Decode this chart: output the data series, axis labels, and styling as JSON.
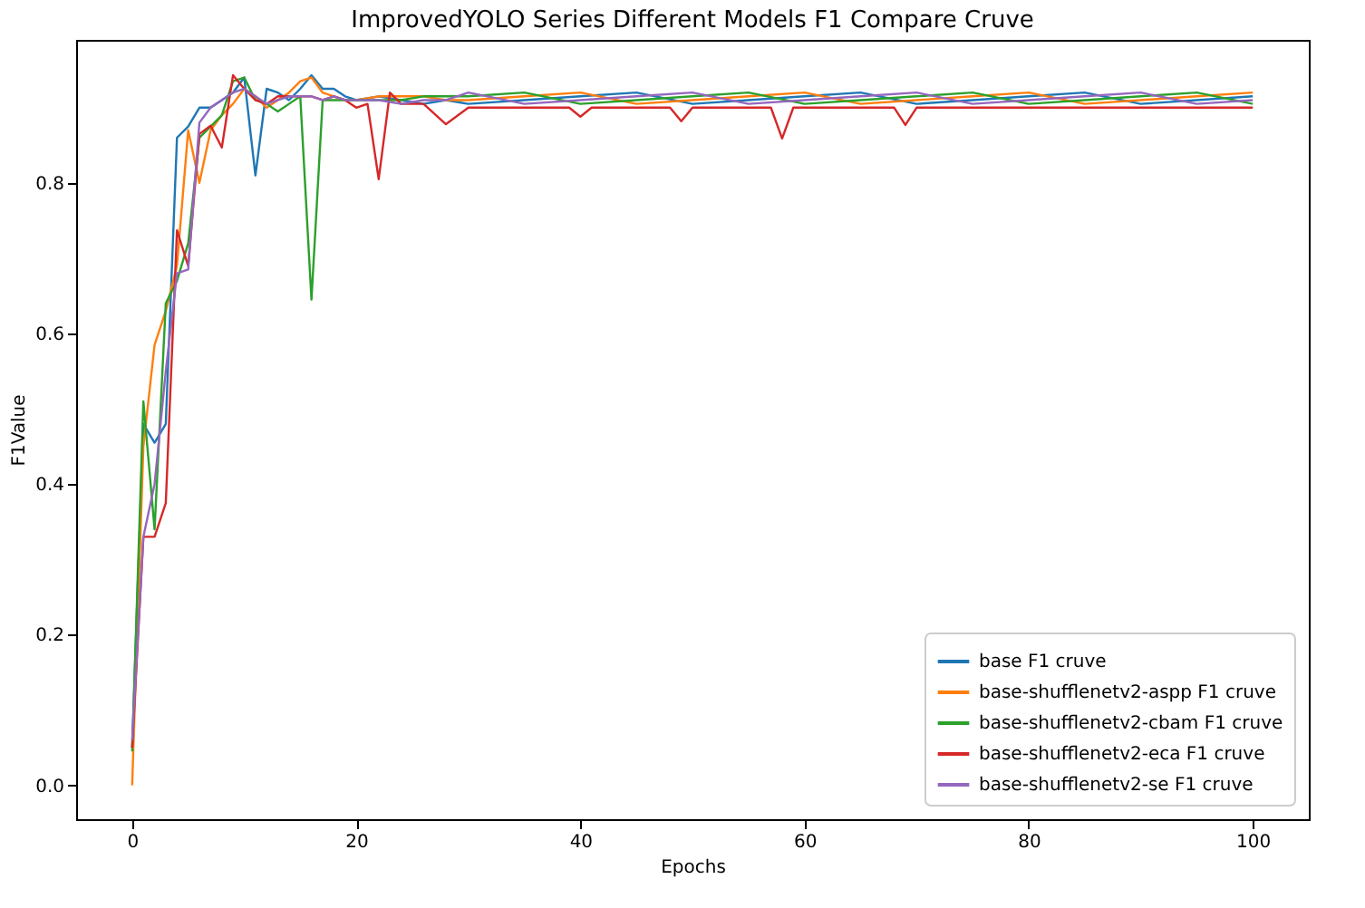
{
  "chart_data": {
    "type": "line",
    "title": "ImprovedYOLO Series Different Models F1 Compare Cruve",
    "xlabel": "Epochs",
    "ylabel": "F1Value",
    "xlim": [
      -5,
      105
    ],
    "xticks": [
      0,
      20,
      40,
      60,
      80,
      100
    ],
    "ylim": [
      -0.045,
      0.99
    ],
    "yticks": [
      {
        "value": 0,
        "label": "0.0"
      },
      0.2,
      0.4,
      0.6,
      0.8
    ],
    "grid": false,
    "legend": "bottom right",
    "line_style": "solid",
    "series": [
      {
        "name": "base F1 cruve",
        "color": "#1f77b4",
        "x": [
          0,
          1,
          2,
          3,
          4,
          5,
          6,
          7,
          8,
          9,
          10,
          11,
          12,
          13,
          14,
          15,
          16,
          17,
          18,
          19,
          20,
          22,
          24,
          26,
          28,
          30,
          35,
          40,
          45,
          50,
          55,
          60,
          65,
          70,
          75,
          80,
          85,
          90,
          95,
          100
        ],
        "values": [
          0.05,
          0.48,
          0.455,
          0.48,
          0.86,
          0.875,
          0.9,
          0.9,
          0.91,
          0.92,
          0.94,
          0.81,
          0.925,
          0.92,
          0.91,
          0.925,
          0.943,
          0.925,
          0.925,
          0.915,
          0.91,
          0.915,
          0.91,
          0.905,
          0.91,
          0.905,
          0.91,
          0.915,
          0.92,
          0.905,
          0.91,
          0.915,
          0.92,
          0.905,
          0.91,
          0.915,
          0.92,
          0.905,
          0.91,
          0.915
        ]
      },
      {
        "name": "base-shufflenetv2-aspp F1 cruve",
        "color": "#ff7f0e",
        "x": [
          0,
          1,
          2,
          3,
          4,
          5,
          6,
          7,
          8,
          9,
          10,
          11,
          12,
          13,
          14,
          15,
          16,
          17,
          18,
          19,
          20,
          22,
          24,
          26,
          28,
          30,
          35,
          40,
          45,
          50,
          55,
          60,
          65,
          70,
          75,
          80,
          85,
          90,
          95,
          100
        ],
        "values": [
          0.0,
          0.45,
          0.585,
          0.63,
          0.69,
          0.87,
          0.8,
          0.87,
          0.89,
          0.905,
          0.925,
          0.915,
          0.9,
          0.91,
          0.92,
          0.935,
          0.94,
          0.92,
          0.915,
          0.91,
          0.91,
          0.915,
          0.915,
          0.915,
          0.91,
          0.91,
          0.915,
          0.92,
          0.905,
          0.91,
          0.915,
          0.92,
          0.905,
          0.91,
          0.915,
          0.92,
          0.905,
          0.91,
          0.915,
          0.92
        ]
      },
      {
        "name": "base-shufflenetv2-cbam F1 cruve",
        "color": "#2ca02c",
        "x": [
          0,
          1,
          2,
          3,
          4,
          5,
          6,
          7,
          8,
          9,
          10,
          11,
          12,
          13,
          14,
          15,
          16,
          17,
          18,
          19,
          20,
          22,
          24,
          26,
          28,
          30,
          35,
          40,
          45,
          50,
          55,
          60,
          65,
          70,
          75,
          80,
          85,
          90,
          95,
          100
        ],
        "values": [
          0.045,
          0.51,
          0.34,
          0.64,
          0.67,
          0.72,
          0.86,
          0.875,
          0.89,
          0.935,
          0.94,
          0.91,
          0.905,
          0.895,
          0.905,
          0.915,
          0.645,
          0.91,
          0.91,
          0.91,
          0.91,
          0.91,
          0.91,
          0.915,
          0.915,
          0.915,
          0.92,
          0.905,
          0.91,
          0.915,
          0.92,
          0.905,
          0.91,
          0.915,
          0.92,
          0.905,
          0.91,
          0.915,
          0.92,
          0.905
        ]
      },
      {
        "name": "base-shufflenetv2-eca F1 cruve",
        "color": "#d62728",
        "x": [
          0,
          1,
          2,
          3,
          4,
          5,
          6,
          7,
          8,
          9,
          10,
          11,
          12,
          13,
          14,
          15,
          16,
          17,
          18,
          19,
          20,
          21,
          22,
          23,
          24,
          26,
          28,
          30,
          35,
          39,
          40,
          41,
          45,
          48,
          49,
          50,
          55,
          57,
          58,
          59,
          65,
          68,
          69,
          70,
          75,
          80,
          85,
          90,
          95,
          100
        ],
        "values": [
          0.05,
          0.33,
          0.33,
          0.375,
          0.737,
          0.69,
          0.865,
          0.876,
          0.847,
          0.943,
          0.925,
          0.91,
          0.905,
          0.915,
          0.915,
          0.915,
          0.915,
          0.91,
          0.915,
          0.91,
          0.9,
          0.905,
          0.805,
          0.92,
          0.905,
          0.905,
          0.878,
          0.9,
          0.9,
          0.9,
          0.888,
          0.9,
          0.9,
          0.9,
          0.882,
          0.9,
          0.9,
          0.9,
          0.859,
          0.9,
          0.9,
          0.9,
          0.877,
          0.9,
          0.9,
          0.9,
          0.9,
          0.9,
          0.9,
          0.9
        ]
      },
      {
        "name": "base-shufflenetv2-se F1 cruve",
        "color": "#9467bd",
        "x": [
          0,
          1,
          2,
          3,
          4,
          5,
          6,
          7,
          8,
          9,
          10,
          11,
          12,
          13,
          14,
          15,
          16,
          17,
          18,
          19,
          20,
          22,
          24,
          26,
          28,
          30,
          35,
          40,
          45,
          50,
          55,
          60,
          65,
          70,
          75,
          80,
          85,
          90,
          95,
          100
        ],
        "values": [
          0.06,
          0.33,
          0.4,
          0.55,
          0.68,
          0.685,
          0.88,
          0.9,
          0.91,
          0.92,
          0.925,
          0.915,
          0.905,
          0.91,
          0.915,
          0.915,
          0.915,
          0.91,
          0.915,
          0.91,
          0.91,
          0.91,
          0.905,
          0.91,
          0.91,
          0.92,
          0.905,
          0.91,
          0.915,
          0.92,
          0.905,
          0.91,
          0.915,
          0.92,
          0.905,
          0.91,
          0.915,
          0.92,
          0.905,
          0.91
        ]
      }
    ]
  }
}
